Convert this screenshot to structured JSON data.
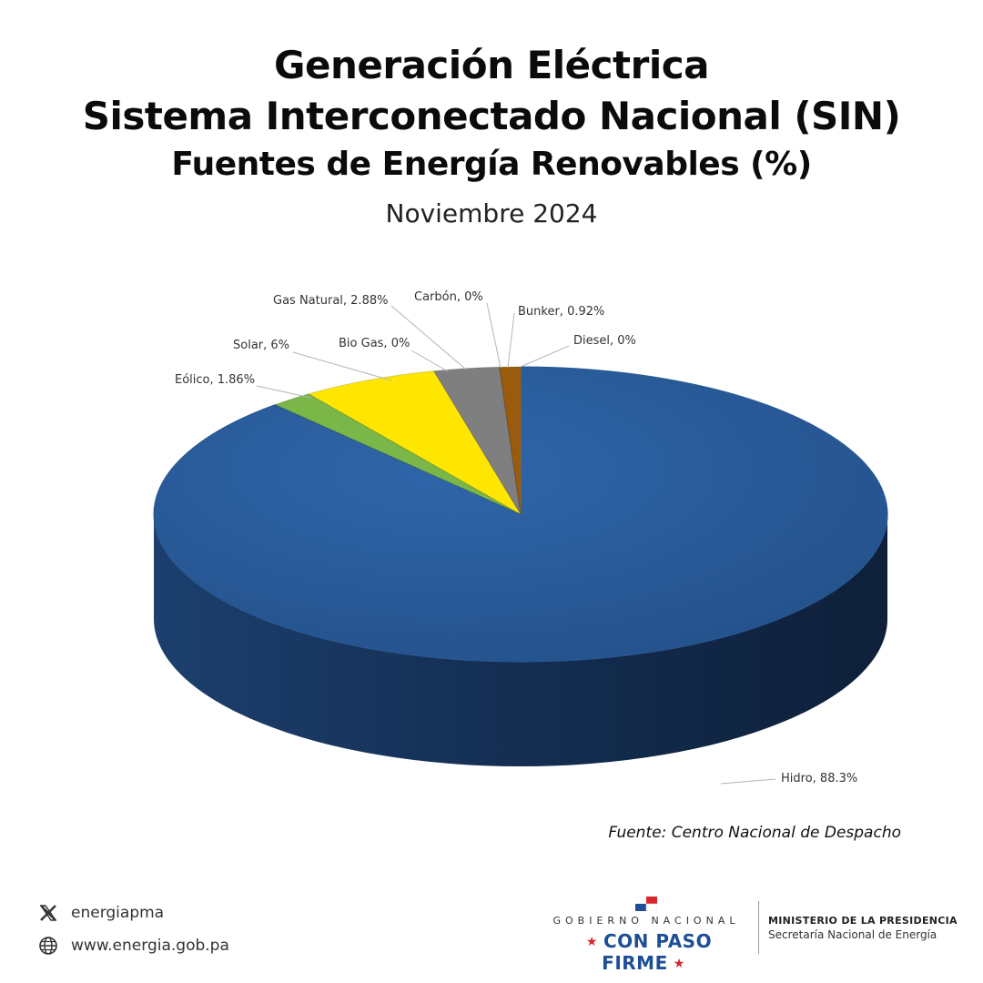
{
  "header": {
    "title_line1": "Generación Eléctrica",
    "title_line2": "Sistema Interconectado Nacional (SIN)",
    "title_line3": "Fuentes de Energía Renovables (%)",
    "subtitle": "Noviembre 2024"
  },
  "chart_data": {
    "type": "pie",
    "title": "Generación Eléctrica Sistema Interconectado Nacional (SIN) Fuentes de Energía Renovables (%)",
    "subtitle": "Noviembre 2024",
    "slices": [
      {
        "name": "Hidro",
        "value": 88.3,
        "label": "Hidro, 88.3%",
        "color": "#2b5fa0"
      },
      {
        "name": "Eólico",
        "value": 1.86,
        "label": "Eólico, 1.86%",
        "color": "#7ab648"
      },
      {
        "name": "Solar",
        "value": 6,
        "label": "Solar, 6%",
        "color": "#ffe600"
      },
      {
        "name": "Bio Gas",
        "value": 0,
        "label": "Bio Gas, 0%",
        "color": "#a0a0a0"
      },
      {
        "name": "Gas Natural",
        "value": 2.88,
        "label": "Gas Natural, 2.88%",
        "color": "#7f7f7f"
      },
      {
        "name": "Carbón",
        "value": 0,
        "label": "Carbón,  0%",
        "color": "#555555"
      },
      {
        "name": "Bunker",
        "value": 0.92,
        "label": "Bunker, 0.92%",
        "color": "#9a5b0d"
      },
      {
        "name": "Diesel",
        "value": 0,
        "label": "Diesel, 0%",
        "color": "#c07a1a"
      }
    ]
  },
  "source": "Fuente: Centro Nacional de Despacho",
  "footer": {
    "twitter": "energiapma",
    "website": "www.energia.gob.pa",
    "gov_line1": "GOBIERNO NACIONAL",
    "gov_line2": "CON PASO FIRME",
    "ministry_line1": "MINISTERIO DE LA PRESIDENCIA",
    "ministry_line2": "Secretaría Nacional de Energía"
  }
}
